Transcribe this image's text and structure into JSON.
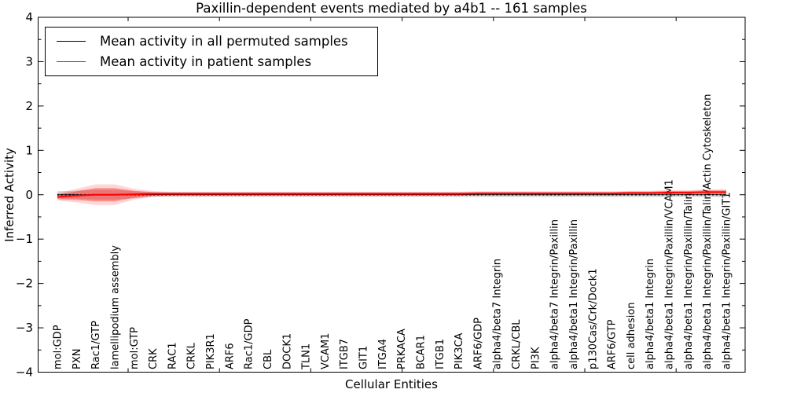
{
  "chart_data": {
    "type": "line",
    "title": "Paxillin-dependent events mediated by a4b1 -- 161 samples",
    "xlabel": "Cellular Entities",
    "ylabel": "Inferred Activity",
    "ylim": [
      -4,
      4
    ],
    "yticks": [
      "−4",
      "−3",
      "−2",
      "−1",
      "0",
      "1",
      "2",
      "3",
      "4"
    ],
    "ytick_values": [
      -4,
      -3,
      -2,
      -1,
      0,
      1,
      2,
      3,
      4
    ],
    "grid": false,
    "legend_position": "upper left",
    "categories": [
      "mol:GDP",
      "PXN",
      "Rac1/GTP",
      "lamellipodium assembly",
      "mol:GTP",
      "CRK",
      "RAC1",
      "CRKL",
      "PIK3R1",
      "ARF6",
      "Rac1/GDP",
      "CBL",
      "DOCK1",
      "TLN1",
      "VCAM1",
      "ITGB7",
      "GIT1",
      "ITGA4",
      "PRKACA",
      "BCAR1",
      "ITGB1",
      "PIK3CA",
      "ARF6/GDP",
      "alpha4/beta7 Integrin",
      "CRKL/CBL",
      "PI3K",
      "alpha4/beta7 Integrin/Paxillin",
      "alpha4/beta1 Integrin/Paxillin",
      "p130Cas/Crk/Dock1",
      "ARF6/GTP",
      "cell adhesion",
      "alpha4/beta1 Integrin",
      "alpha4/beta1 Integrin/Paxillin/VCAM1",
      "alpha4/beta1 Integrin/Paxillin/Talin",
      "alpha4/beta1 Integrin/Paxillin/Talin/Actin Cytoskeleton",
      "alpha4/beta1 Integrin/Paxillin/GIT1"
    ],
    "series": [
      {
        "name": "Mean activity in all permuted samples",
        "color": "#000000",
        "style": "dotted",
        "values": [
          0,
          0,
          0,
          0,
          0,
          0,
          0,
          0,
          0,
          0,
          0,
          0,
          0,
          0,
          0,
          0,
          0,
          0,
          0,
          0,
          0,
          0,
          0,
          0,
          0,
          0,
          0,
          0,
          0,
          0,
          0,
          0,
          0,
          0,
          0,
          0
        ],
        "band_halfwidth": [
          0.08,
          0.09,
          0.11,
          0.11,
          0.08,
          0.05,
          0.05,
          0.05,
          0.05,
          0.05,
          0.05,
          0.05,
          0.05,
          0.05,
          0.05,
          0.05,
          0.05,
          0.05,
          0.05,
          0.05,
          0.05,
          0.05,
          0.05,
          0.05,
          0.05,
          0.05,
          0.05,
          0.05,
          0.05,
          0.05,
          0.05,
          0.05,
          0.05,
          0.05,
          0.05,
          0.06
        ],
        "band_color": "#999999"
      },
      {
        "name": "Mean activity in patient samples",
        "color": "#ff0000",
        "style": "solid",
        "values": [
          -0.05,
          -0.02,
          0,
          0,
          0.01,
          0.02,
          0.02,
          0.02,
          0.02,
          0.02,
          0.02,
          0.02,
          0.02,
          0.02,
          0.02,
          0.02,
          0.02,
          0.02,
          0.02,
          0.02,
          0.02,
          0.02,
          0.03,
          0.03,
          0.03,
          0.03,
          0.03,
          0.03,
          0.03,
          0.03,
          0.04,
          0.04,
          0.05,
          0.05,
          0.06,
          0.06
        ],
        "band_halfwidth": [
          0.05,
          0.1,
          0.15,
          0.15,
          0.08,
          0.04,
          0.03,
          0.03,
          0.03,
          0.03,
          0.03,
          0.03,
          0.03,
          0.03,
          0.03,
          0.03,
          0.03,
          0.03,
          0.03,
          0.03,
          0.03,
          0.03,
          0.03,
          0.03,
          0.03,
          0.03,
          0.03,
          0.03,
          0.03,
          0.03,
          0.03,
          0.03,
          0.035,
          0.035,
          0.04,
          0.04
        ],
        "band_color": "#ff0000"
      }
    ]
  }
}
